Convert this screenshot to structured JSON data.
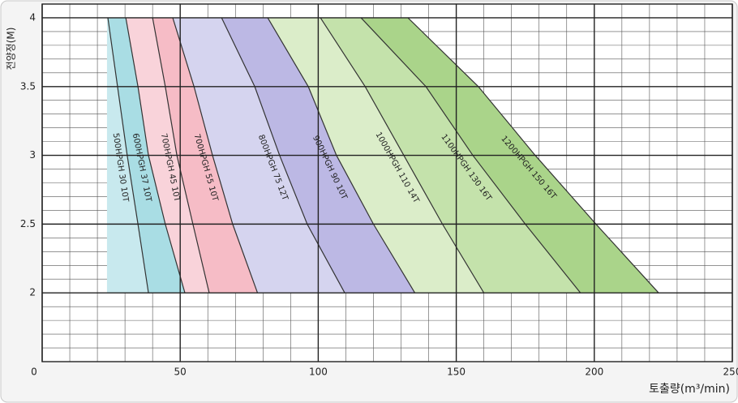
{
  "chart_data": {
    "type": "pump-curves",
    "y_label": "전양정(M)",
    "x_label": "토출량(m³/min)",
    "xlim": [
      0,
      250
    ],
    "xticks": [
      0,
      50,
      100,
      150,
      200,
      250
    ],
    "ylim": [
      1.5,
      4.1
    ],
    "yticks": [
      2,
      2.5,
      3,
      3.5,
      4
    ],
    "grid": {
      "major": true,
      "minor_x_step": 10,
      "minor_y_step": 0.1
    },
    "left_edge": 23.5,
    "y": [
      4,
      3.5,
      3,
      2.5,
      2
    ],
    "series": [
      {
        "name": "1200HPGH 150 16T",
        "color": "#aad48a",
        "values": [
          132.5,
          158,
          178.6,
          200.6,
          223.3
        ]
      },
      {
        "name": "1100HPGH 130 16T",
        "color": "#c4e2ab",
        "values": [
          115.5,
          139,
          156,
          175,
          195
        ]
      },
      {
        "name": "1000HPGH 110 14T",
        "color": "#dbedc9",
        "values": [
          100.8,
          117,
          131,
          145,
          160
        ]
      },
      {
        "name": "900HPGH 90 10T",
        "color": "#bcb8e4",
        "values": [
          81.7,
          96.4,
          106.6,
          120,
          135
        ]
      },
      {
        "name": "800HPGH 75 12T",
        "color": "#d5d4ef",
        "values": [
          65,
          77,
          86,
          96,
          109.6
        ]
      },
      {
        "name": "700HPGH 55 10T",
        "color": "#f6bcc6",
        "values": [
          47.3,
          55,
          61.7,
          69,
          78
        ]
      },
      {
        "name": "700HPGH 45 10T",
        "color": "#f9d3da",
        "values": [
          40,
          44.6,
          48.8,
          54.6,
          60.5
        ]
      },
      {
        "name": "600HPGH 37 10T",
        "color": "#a9dde4",
        "values": [
          30.3,
          34.7,
          38.5,
          44.6,
          51.7
        ]
      },
      {
        "name": "500HPGH 30 10T",
        "color": "#c8e9ee",
        "values": [
          23.8,
          27.3,
          30.8,
          34.7,
          38.5
        ]
      }
    ]
  }
}
